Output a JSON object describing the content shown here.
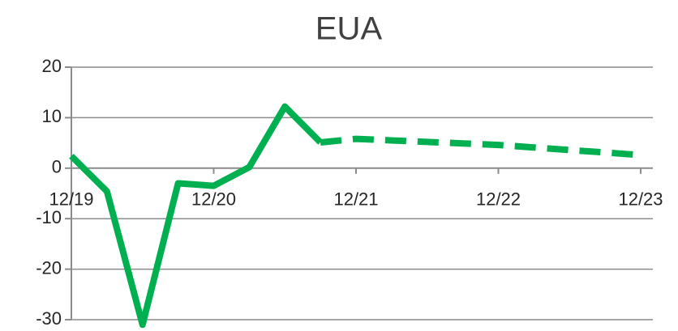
{
  "chart_data": {
    "type": "line",
    "title": "EUA",
    "categories": [
      "12/19",
      null,
      null,
      null,
      "12/20",
      null,
      null,
      null,
      "12/21",
      null,
      null,
      null,
      "12/22",
      null,
      null,
      null,
      "12/23"
    ],
    "series": [
      {
        "color": "#00b050",
        "dashed": false,
        "values": [
          2.4,
          -4.6,
          -31,
          -3,
          -3.5,
          0.2,
          12.2,
          5.1,
          null,
          null,
          null,
          null,
          null,
          null,
          null,
          null,
          null
        ]
      },
      {
        "color": "#00b050",
        "dashed": true,
        "values": [
          null,
          null,
          null,
          null,
          null,
          null,
          null,
          5.1,
          5.8,
          5.5,
          5.2,
          4.9,
          4.6,
          4.1,
          3.6,
          3.1,
          2.6
        ]
      }
    ],
    "ylim": [
      -30,
      20
    ],
    "yticks": [
      -30,
      -20,
      -10,
      0,
      10,
      20
    ],
    "grid": true
  }
}
